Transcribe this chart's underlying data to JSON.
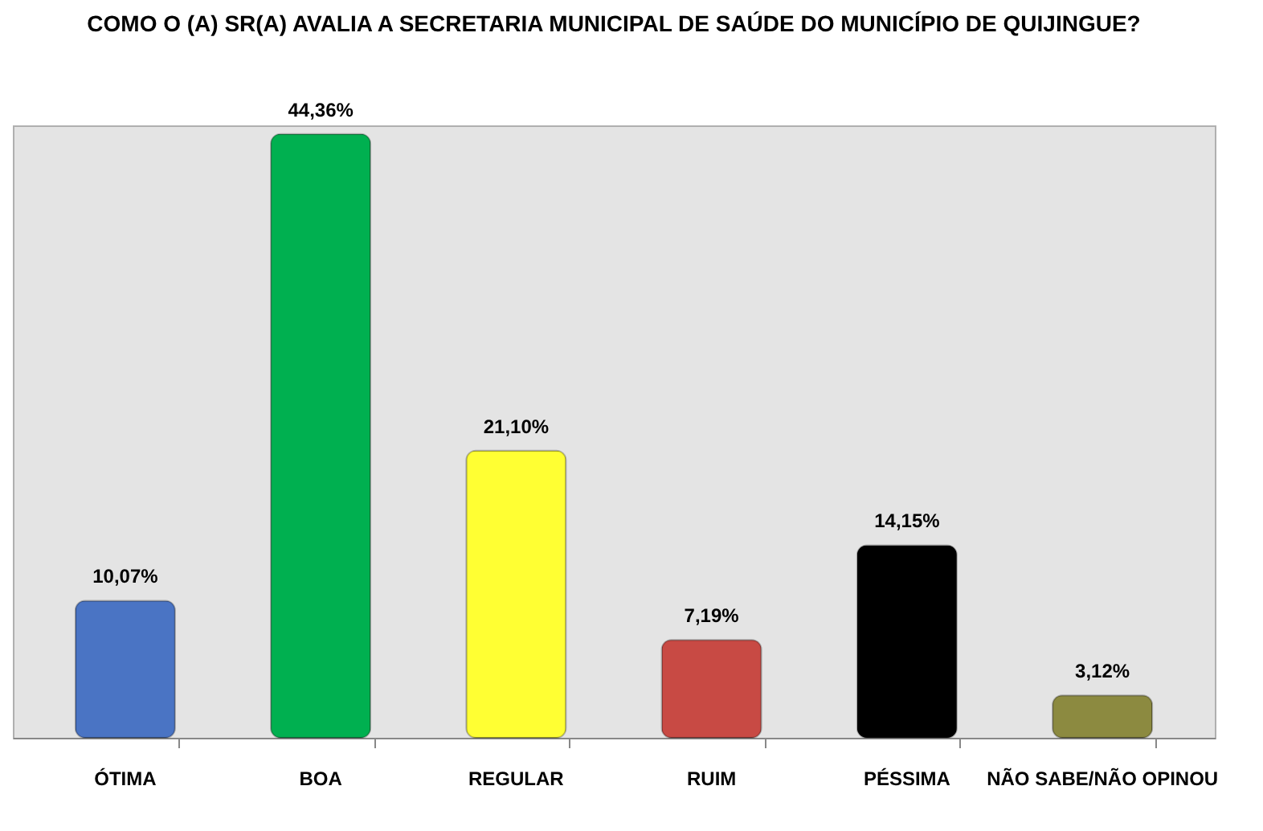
{
  "chart_data": {
    "type": "bar",
    "title": "COMO O (A) SR(A) AVALIA A SECRETARIA MUNICIPAL DE SAÚDE DO MUNICÍPIO DE QUIJINGUE?",
    "categories": [
      "ÓTIMA",
      "BOA",
      "REGULAR",
      "RUIM",
      "PÉSSIMA",
      "NÃO SABE/NÃO OPINOU"
    ],
    "values": [
      10.07,
      44.36,
      21.1,
      7.19,
      14.15,
      3.12
    ],
    "value_labels": [
      "10,07%",
      "44,36%",
      "21,10%",
      "7,19%",
      "14,15%",
      "3,12%"
    ],
    "colors": [
      "#4a74c4",
      "#00b050",
      "#ffff33",
      "#c84a44",
      "#000000",
      "#8c8a40"
    ]
  }
}
